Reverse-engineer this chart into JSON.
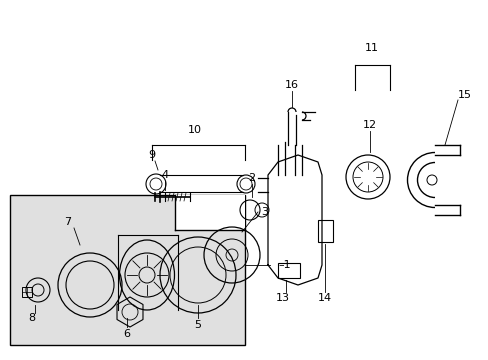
{
  "bg_color": "#ffffff",
  "line_color": "#000000",
  "shaded_box_color": "#e0e0e0",
  "figsize": [
    4.89,
    3.6
  ],
  "dpi": 100
}
